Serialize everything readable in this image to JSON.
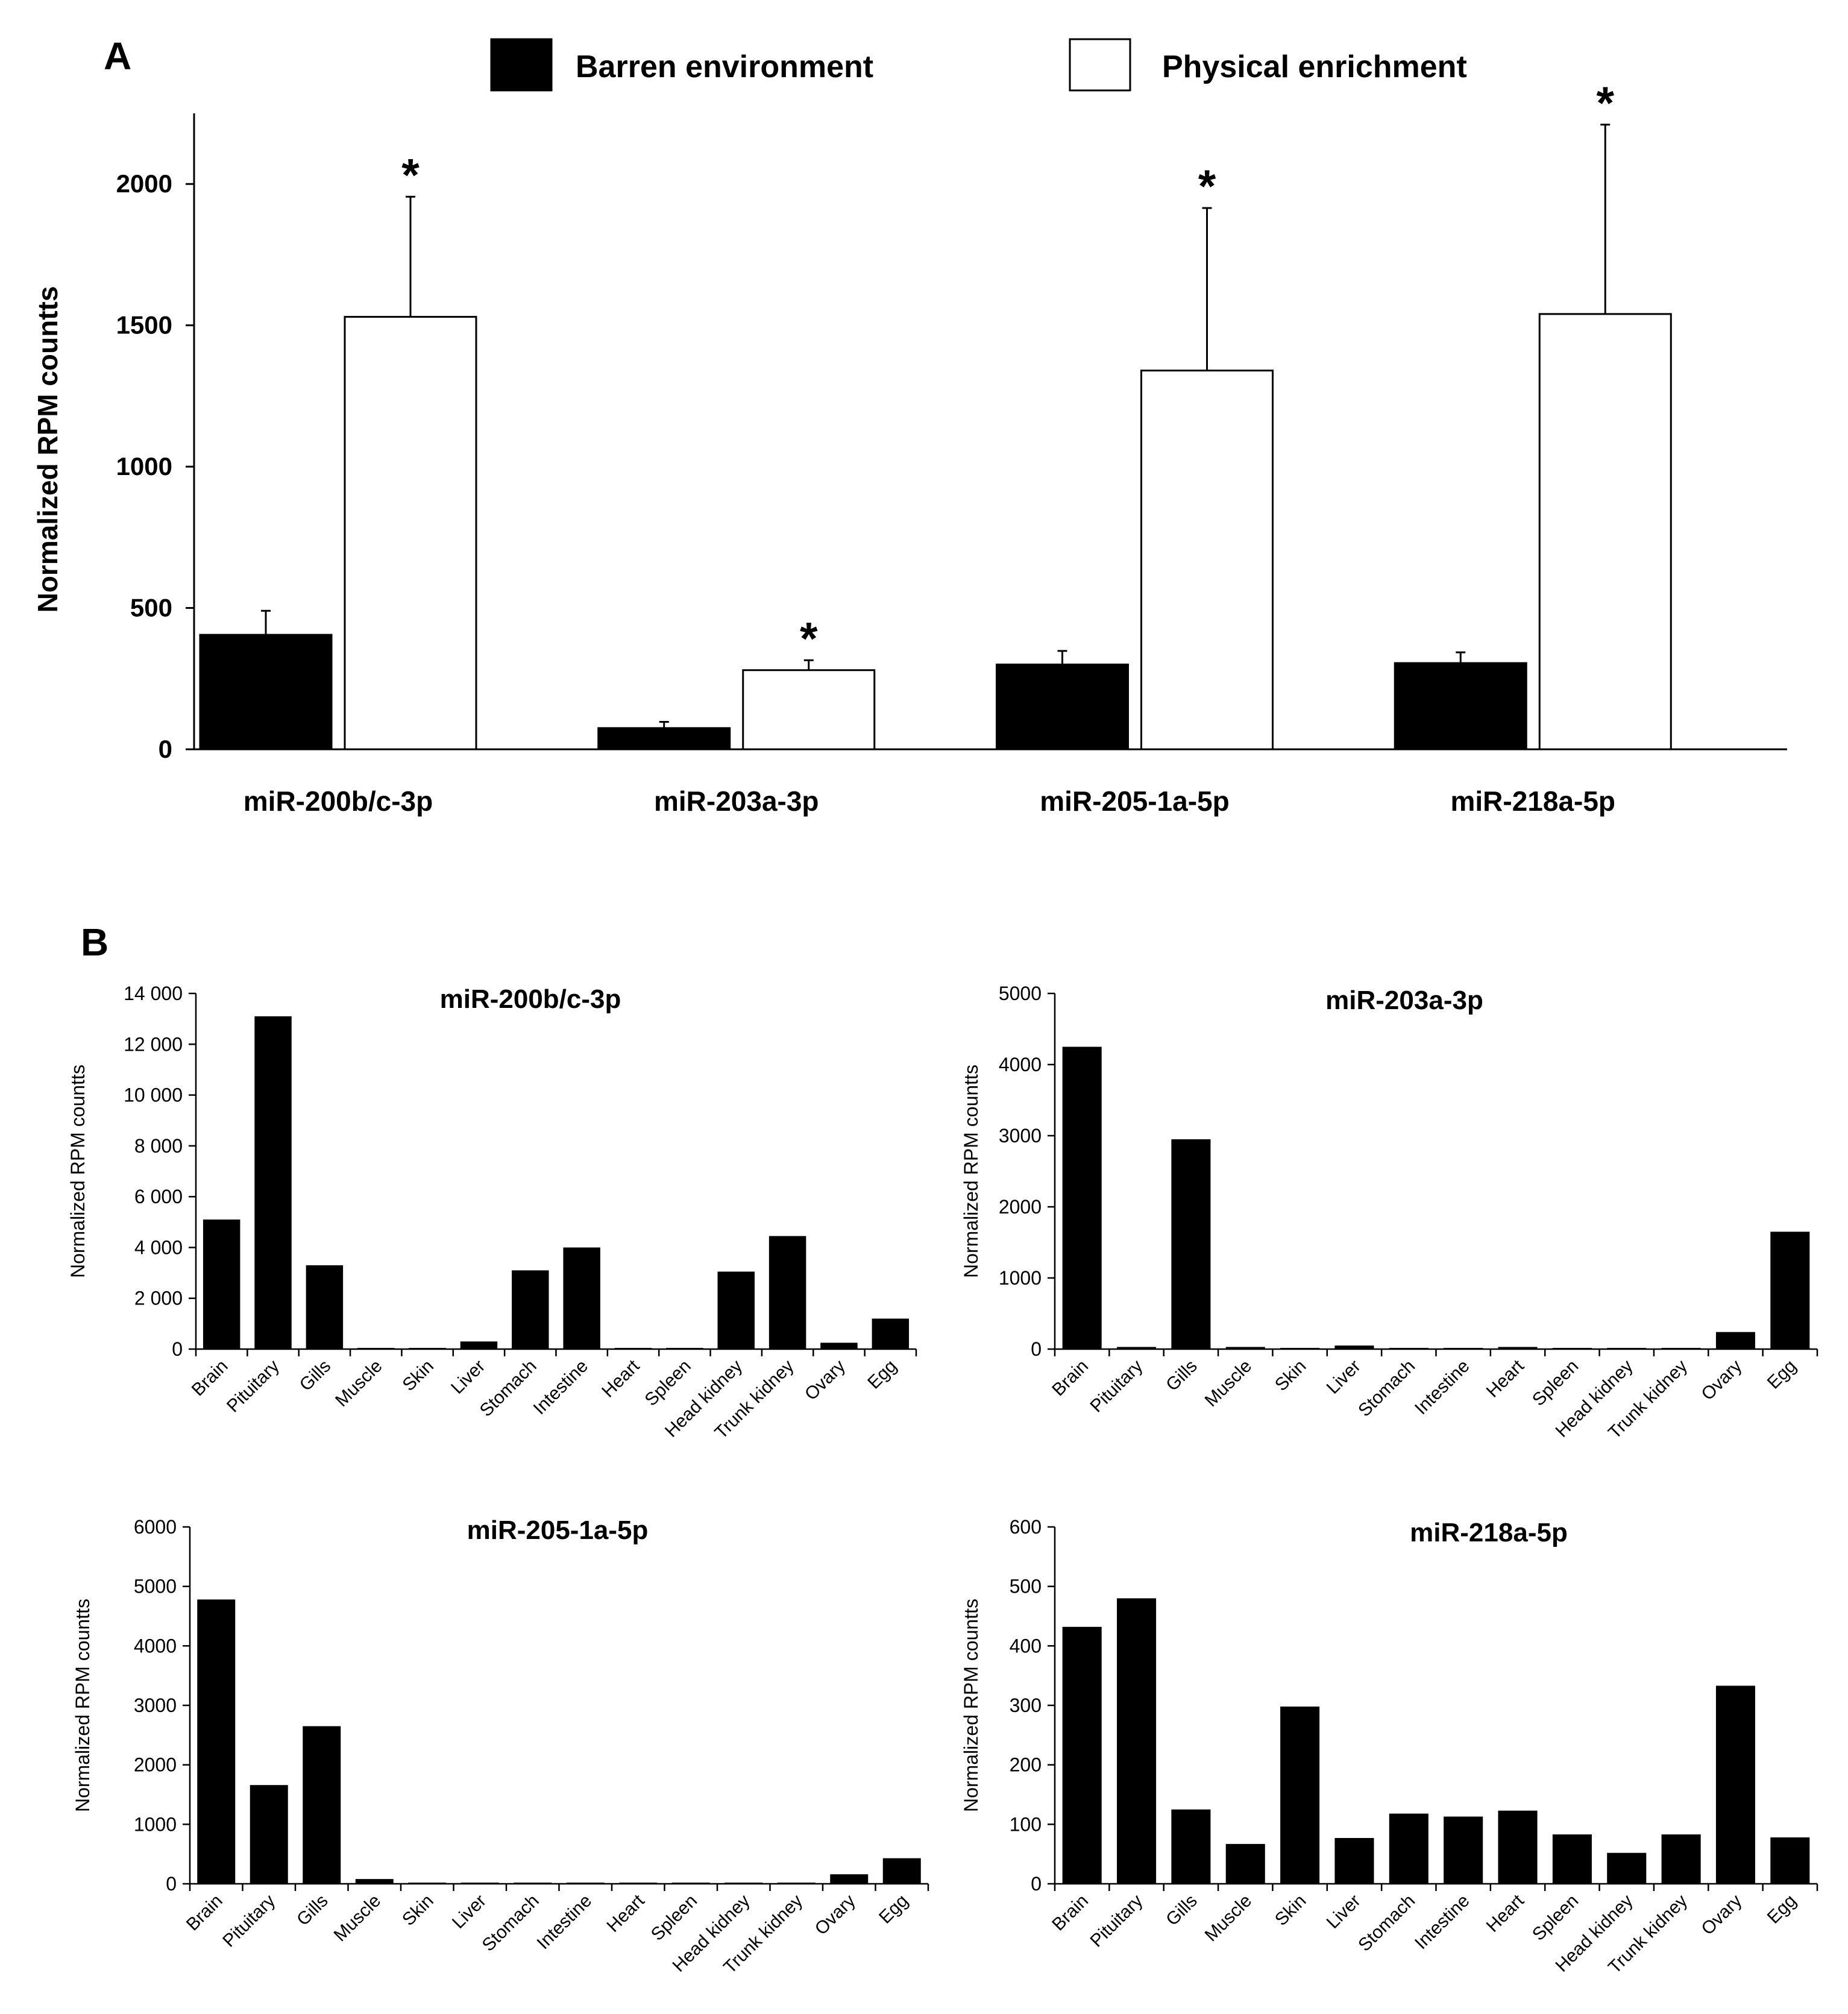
{
  "figure": {
    "panel_a_letter": "A",
    "panel_b_letter": "B",
    "colors": {
      "barren": "#000000",
      "enriched": "#ffffff",
      "axis": "#000000"
    }
  },
  "chart_data": [
    {
      "id": "panel-a",
      "type": "bar",
      "title": "",
      "ylabel": "Normalized RPM countts",
      "xlabel": "",
      "ylim": [
        0,
        2250
      ],
      "yticks": [
        0,
        500,
        1000,
        1500,
        2000
      ],
      "ytick_labels": [
        "0",
        "500",
        "1000",
        "1500",
        "2000"
      ],
      "categories": [
        "miR-200b/c-3p",
        "miR-203a-3p",
        "miR-205-1a-5p",
        "miR-218a-5p"
      ],
      "series": [
        {
          "name": "Barren environment",
          "color": "#000000",
          "values": [
            405,
            75,
            300,
            305
          ],
          "errors": [
            85,
            22,
            48,
            38
          ],
          "significant": [
            false,
            false,
            false,
            false
          ]
        },
        {
          "name": "Physical enrichment",
          "color": "#ffffff",
          "values": [
            1530,
            280,
            1340,
            1540
          ],
          "errors": [
            425,
            35,
            575,
            670
          ],
          "significant": [
            true,
            true,
            true,
            true
          ]
        }
      ],
      "significance_marker": "*",
      "legend_position": "top"
    },
    {
      "id": "b1",
      "type": "bar",
      "title": "miR-200b/c-3p",
      "ylabel": "Normalized RPM countts",
      "ylim": [
        0,
        14000
      ],
      "yticks": [
        0,
        2000,
        4000,
        6000,
        8000,
        10000,
        12000,
        14000
      ],
      "ytick_labels": [
        "0",
        "2 000",
        "4 000",
        "6 000",
        "8 000",
        "10 000",
        "12 000",
        "14 000"
      ],
      "categories": [
        "Brain",
        "Pituitary",
        "Gills",
        "Muscle",
        "Skin",
        "Liver",
        "Stomach",
        "Intestine",
        "Heart",
        "Spleen",
        "Head kidney",
        "Trunk kidney",
        "Ovary",
        "Egg"
      ],
      "values": [
        5100,
        13100,
        3300,
        40,
        30,
        300,
        3100,
        4000,
        30,
        30,
        3050,
        4450,
        250,
        1200
      ]
    },
    {
      "id": "b2",
      "type": "bar",
      "title": "miR-203a-3p",
      "ylabel": "Normalized RPM countts",
      "ylim": [
        0,
        5000
      ],
      "yticks": [
        0,
        1000,
        2000,
        3000,
        4000,
        5000
      ],
      "ytick_labels": [
        "0",
        "1000",
        "2000",
        "3000",
        "4000",
        "5000"
      ],
      "categories": [
        "Brain",
        "Pituitary",
        "Gills",
        "Muscle",
        "Skin",
        "Liver",
        "Stomach",
        "Intestine",
        "Heart",
        "Spleen",
        "Head kidney",
        "Trunk kidney",
        "Ovary",
        "Egg"
      ],
      "values": [
        4250,
        30,
        2950,
        30,
        15,
        50,
        15,
        15,
        30,
        15,
        10,
        15,
        240,
        1650
      ]
    },
    {
      "id": "b3",
      "type": "bar",
      "title": "miR-205-1a-5p",
      "ylabel": "Normalized RPM countts",
      "ylim": [
        0,
        6000
      ],
      "yticks": [
        0,
        1000,
        2000,
        3000,
        4000,
        5000,
        6000
      ],
      "ytick_labels": [
        "0",
        "1000",
        "2000",
        "3000",
        "4000",
        "5000",
        "6000"
      ],
      "categories": [
        "Brain",
        "Pituitary",
        "Gills",
        "Muscle",
        "Skin",
        "Liver",
        "Stomach",
        "Intestine",
        "Heart",
        "Spleen",
        "Head kidney",
        "Trunk kidney",
        "Ovary",
        "Egg"
      ],
      "values": [
        4780,
        1660,
        2650,
        80,
        20,
        15,
        15,
        15,
        15,
        15,
        15,
        15,
        160,
        430
      ]
    },
    {
      "id": "b4",
      "type": "bar",
      "title": "miR-218a-5p",
      "ylabel": "Normalized RPM countts",
      "ylim": [
        0,
        600
      ],
      "yticks": [
        0,
        100,
        200,
        300,
        400,
        500,
        600
      ],
      "ytick_labels": [
        "0",
        "100",
        "200",
        "300",
        "400",
        "500",
        "600"
      ],
      "categories": [
        "Brain",
        "Pituitary",
        "Gills",
        "Muscle",
        "Skin",
        "Liver",
        "Stomach",
        "Intestine",
        "Heart",
        "Spleen",
        "Head kidney",
        "Trunk kidney",
        "Ovary",
        "Egg"
      ],
      "values": [
        432,
        480,
        125,
        67,
        298,
        77,
        118,
        113,
        123,
        83,
        52,
        83,
        333,
        78
      ]
    }
  ]
}
